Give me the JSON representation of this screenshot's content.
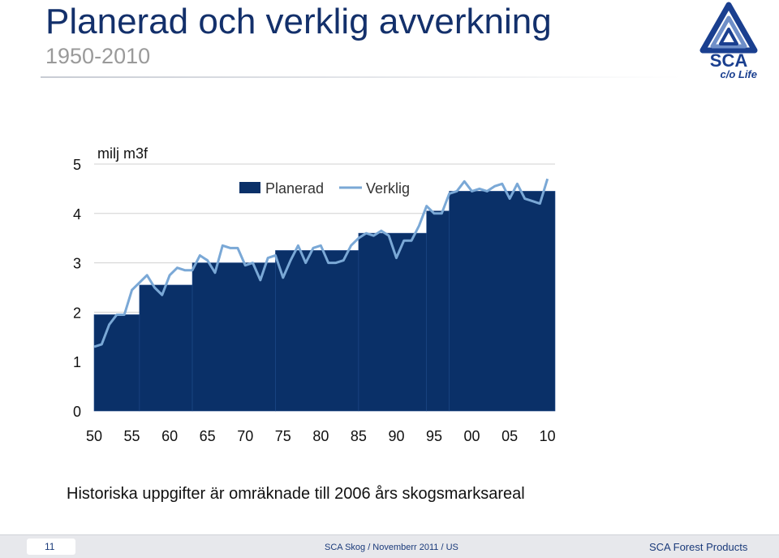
{
  "slide": {
    "title": "Planerad och verklig avverkning",
    "subtitle": "1950-2010",
    "footnote": "Historiska uppgifter är omräknade till 2006 års skogsmarksareal"
  },
  "logo": {
    "text": "SCA",
    "tagline": "c/o Life",
    "icon": "sca-triangle-logo-icon",
    "color": "#1a3f8f"
  },
  "footer": {
    "page_number": "11",
    "center": "SCA Skog / Novemberr 2011 / US",
    "right": "SCA Forest Products"
  },
  "chart_data": {
    "type": "bar",
    "ylabel": "milj m3f",
    "ylim": [
      0,
      5
    ],
    "yticks": [
      "0",
      "1",
      "2",
      "3",
      "4",
      "5"
    ],
    "xlim": [
      1950,
      2011
    ],
    "xticks": [
      {
        "label": "50",
        "value": 1950
      },
      {
        "label": "55",
        "value": 1955
      },
      {
        "label": "60",
        "value": 1960
      },
      {
        "label": "65",
        "value": 1965
      },
      {
        "label": "70",
        "value": 1970
      },
      {
        "label": "75",
        "value": 1975
      },
      {
        "label": "80",
        "value": 1980
      },
      {
        "label": "85",
        "value": 1985
      },
      {
        "label": "90",
        "value": 1990
      },
      {
        "label": "95",
        "value": 1995
      },
      {
        "label": "00",
        "value": 2000
      },
      {
        "label": "05",
        "value": 2005
      },
      {
        "label": "10",
        "value": 2010
      }
    ],
    "legend_position": "top",
    "grid": true,
    "colors": {
      "planerad": "#0a3068",
      "verklig": "#7aa8d6",
      "grid": "#d0d0d0"
    },
    "series": [
      {
        "name": "Planerad",
        "type": "step-bar",
        "segments": [
          {
            "from": 1950,
            "to": 1956,
            "value": 1.95
          },
          {
            "from": 1956,
            "to": 1963,
            "value": 2.55
          },
          {
            "from": 1963,
            "to": 1974,
            "value": 3.0
          },
          {
            "from": 1974,
            "to": 1985,
            "value": 3.25
          },
          {
            "from": 1985,
            "to": 1994,
            "value": 3.6
          },
          {
            "from": 1994,
            "to": 1997,
            "value": 4.05
          },
          {
            "from": 1997,
            "to": 2011,
            "value": 4.45
          }
        ]
      },
      {
        "name": "Verklig",
        "type": "line",
        "x": [
          1950,
          1951,
          1952,
          1953,
          1954,
          1955,
          1956,
          1957,
          1958,
          1959,
          1960,
          1961,
          1962,
          1963,
          1964,
          1965,
          1966,
          1967,
          1968,
          1969,
          1970,
          1971,
          1972,
          1973,
          1974,
          1975,
          1976,
          1977,
          1978,
          1979,
          1980,
          1981,
          1982,
          1983,
          1984,
          1985,
          1986,
          1987,
          1988,
          1989,
          1990,
          1991,
          1992,
          1993,
          1994,
          1995,
          1996,
          1997,
          1998,
          1999,
          2000,
          2001,
          2002,
          2003,
          2004,
          2005,
          2006,
          2007,
          2008,
          2009,
          2010
        ],
        "values": [
          1.3,
          1.35,
          1.75,
          1.95,
          1.95,
          2.45,
          2.6,
          2.75,
          2.5,
          2.35,
          2.75,
          2.9,
          2.85,
          2.85,
          3.15,
          3.05,
          2.8,
          3.35,
          3.3,
          3.3,
          2.95,
          3.0,
          2.65,
          3.1,
          3.15,
          2.7,
          3.05,
          3.35,
          3.0,
          3.3,
          3.35,
          3.0,
          3.0,
          3.05,
          3.35,
          3.5,
          3.6,
          3.55,
          3.65,
          3.55,
          3.1,
          3.45,
          3.45,
          3.75,
          4.15,
          4.0,
          4.0,
          4.4,
          4.45,
          4.65,
          4.45,
          4.5,
          4.45,
          4.55,
          4.6,
          4.3,
          4.6,
          4.3,
          4.25,
          4.2,
          4.7
        ]
      }
    ]
  }
}
